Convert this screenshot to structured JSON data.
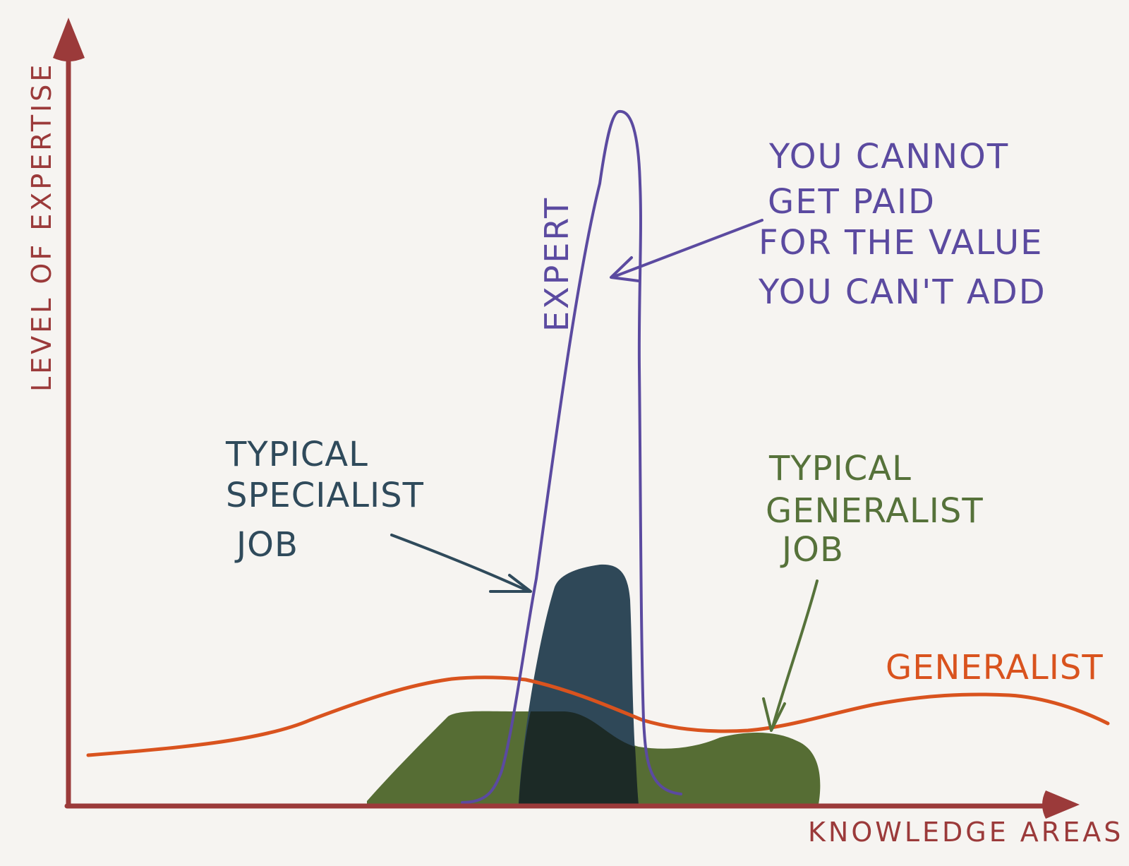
{
  "axes": {
    "y_label": "LEVEL OF EXPERTISE",
    "x_label": "KNOWLEDGE AREAS",
    "color": "#9b3a3a"
  },
  "curves": {
    "expert": {
      "label": "EXPERT",
      "color": "#5b4aa0"
    },
    "generalist": {
      "label": "GENERALIST",
      "color": "#d9531e"
    }
  },
  "shapes": {
    "specialist_job": {
      "color": "#2f4858"
    },
    "generalist_job": {
      "color": "#566d34"
    },
    "overlap": {
      "color": "#1c2a26"
    }
  },
  "annotations": {
    "expert_note": {
      "lines": [
        "YOU CANNOT",
        "GET PAID",
        "FOR THE VALUE",
        "YOU CAN'T  ADD"
      ],
      "color": "#5b4aa0"
    },
    "specialist_note": {
      "lines": [
        "TYPICAL",
        "SPECIALIST",
        "JOB"
      ],
      "color": "#2f4a5b"
    },
    "generalist_note": {
      "lines": [
        "TYPICAL",
        "GENERALIST",
        "JOB"
      ],
      "color": "#56723a"
    }
  }
}
